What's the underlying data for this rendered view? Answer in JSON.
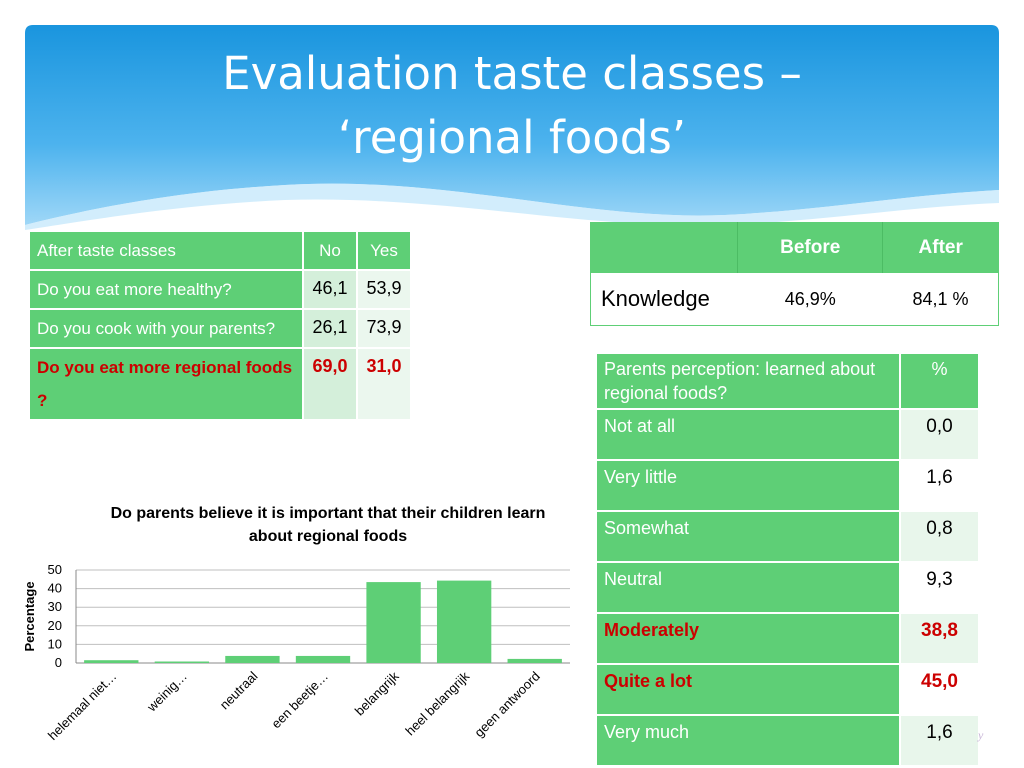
{
  "slide": {
    "title_line1": "Evaluation taste classes –",
    "title_line2": "‘regional foods’",
    "colors": {
      "header_blue": "#1e9ae0",
      "table_green": "#5ecf76",
      "highlight_red": "#cc0000"
    }
  },
  "taste_table": {
    "headers": [
      "After taste classes",
      "No",
      "Yes"
    ],
    "rows": [
      {
        "question": "Do you eat more healthy?",
        "no": "46,1",
        "yes": "53,9"
      },
      {
        "question": "Do you cook with your parents?",
        "no": "26,1",
        "yes": "73,9"
      },
      {
        "question": "Do you eat more regional foods ?",
        "no": "69,0",
        "yes": "31,0"
      }
    ]
  },
  "knowledge_table": {
    "headers": [
      "",
      "Before",
      "After"
    ],
    "row": {
      "label": "Knowledge",
      "before": "46,9%",
      "after": "84,1 %"
    }
  },
  "perception_table": {
    "header_label": "Parents perception: learned about regional foods?",
    "header_value": "%",
    "rows": [
      {
        "label": "Not at all",
        "value": "0,0"
      },
      {
        "label": "Very little",
        "value": "1,6"
      },
      {
        "label": "Somewhat",
        "value": "0,8"
      },
      {
        "label": "Neutral",
        "value": "9,3"
      },
      {
        "label": "Moderately",
        "value": "38,8"
      },
      {
        "label": "Quite a lot",
        "value": "45,0"
      },
      {
        "label": "Very much",
        "value": "1,6"
      }
    ]
  },
  "chart_data": {
    "type": "bar",
    "title": "Do parents believe it is important that their children learn about regional foods",
    "xlabel": "",
    "ylabel": "Percentage",
    "ylim": [
      0,
      50
    ],
    "yticks": [
      0,
      10,
      20,
      30,
      40,
      50
    ],
    "grid": true,
    "categories": [
      "helemaal niet…",
      "weinig…",
      "neutraal",
      "een beetje…",
      "belangrijk",
      "heel belangrijk",
      "geen antwoord"
    ],
    "values": [
      1.5,
      0.8,
      3.8,
      3.8,
      43.5,
      44.3,
      2.2
    ],
    "bar_color": "#5ecf76"
  },
  "footer": {
    "logo_fragment": "y"
  }
}
